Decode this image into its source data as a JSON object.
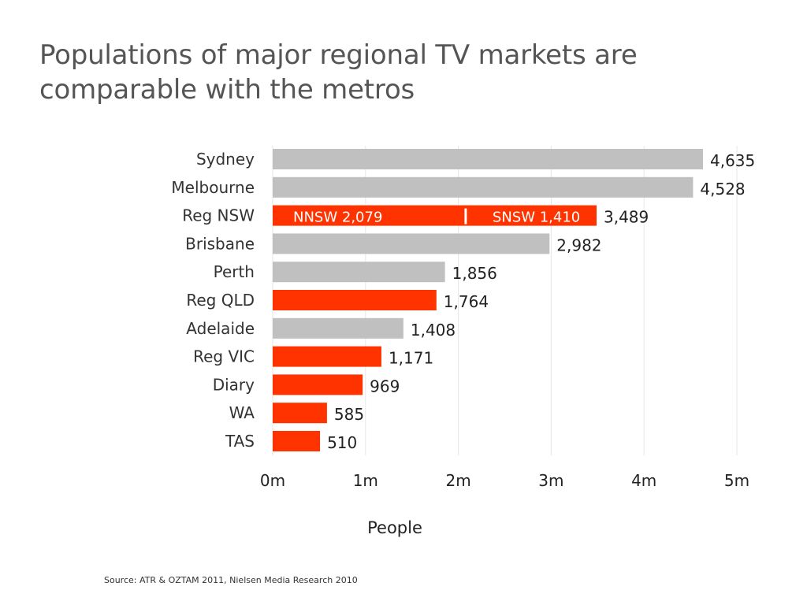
{
  "slide": {
    "title": "Populations of major regional TV markets are comparable with the metros",
    "source": "Source:  ATR & OZTAM 2011,  Nielsen Media Research 2010"
  },
  "chart_data": {
    "type": "bar",
    "orientation": "horizontal",
    "title": "Populations of major regional TV markets are comparable with the metros",
    "xlabel": "People",
    "ylabel": "",
    "xlim": [
      0,
      5000
    ],
    "grid": true,
    "unit_note": "values in thousands",
    "x_ticks": [
      {
        "value": 0,
        "label": "0m"
      },
      {
        "value": 1000,
        "label": "1m"
      },
      {
        "value": 2000,
        "label": "2m"
      },
      {
        "value": 3000,
        "label": "3m"
      },
      {
        "value": 4000,
        "label": "4m"
      },
      {
        "value": 5000,
        "label": "5m"
      }
    ],
    "categories": [
      "Sydney",
      "Melbourne",
      "Reg NSW",
      "Brisbane",
      "Perth",
      "Reg QLD",
      "Adelaide",
      "Reg VIC",
      "Diary",
      "WA",
      "TAS"
    ],
    "values": [
      4635,
      4528,
      3489,
      2982,
      1856,
      1764,
      1408,
      1171,
      969,
      585,
      510
    ],
    "value_labels": [
      "4,635",
      "4,528",
      "3,489",
      "2,982",
      "1,856",
      "1,764",
      "1,408",
      "1,171",
      "969",
      "585",
      "510"
    ],
    "market_type": [
      "metro",
      "metro",
      "regional",
      "metro",
      "metro",
      "regional",
      "metro",
      "regional",
      "regional",
      "regional",
      "regional"
    ],
    "colors": {
      "metro": "#c0c0c0",
      "regional": "#ff3300",
      "grid": "#e6e6e6",
      "divider": "#ffffff"
    },
    "segments": {
      "Reg NSW": [
        {
          "label": "NNSW 2,079",
          "value": 2079
        },
        {
          "label": "SNSW 1,410",
          "value": 1410
        }
      ]
    }
  }
}
